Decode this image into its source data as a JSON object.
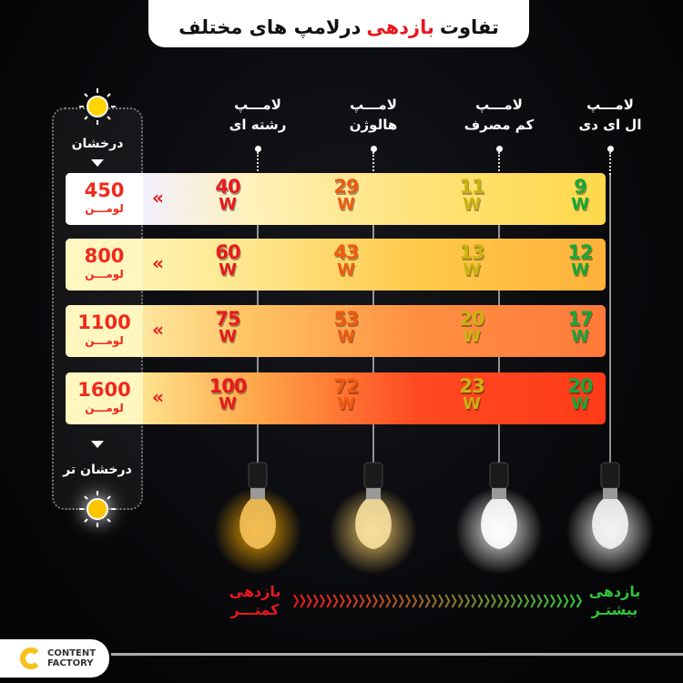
{
  "title": {
    "part1": "تفاوت",
    "highlight": "بازدهی",
    "part2": "درلامپ های مختلف"
  },
  "columns": [
    {
      "line1": "لامـــپ",
      "line2": "رشته ای"
    },
    {
      "line1": "لامـــپ",
      "line2": "هالوژن"
    },
    {
      "line1": "لامـــپ",
      "line2": "کم مصرف"
    },
    {
      "line1": "لامـــپ",
      "line2": "ال ای دی"
    }
  ],
  "brightness": {
    "top_label": "درخشان",
    "bottom_label": "درخشان تر",
    "sun_icon": "sun-icon"
  },
  "rows": [
    {
      "lumens": "450",
      "unit": "لومـــن",
      "chevron": "«",
      "watts": [
        "40",
        "29",
        "11",
        "9"
      ],
      "w": "W"
    },
    {
      "lumens": "800",
      "unit": "لومـــن",
      "chevron": "«",
      "watts": [
        "60",
        "43",
        "13",
        "12"
      ],
      "w": "W"
    },
    {
      "lumens": "1100",
      "unit": "لومـــن",
      "chevron": "«",
      "watts": [
        "75",
        "53",
        "20",
        "17"
      ],
      "w": "W"
    },
    {
      "lumens": "1600",
      "unit": "لومـــن",
      "chevron": "«",
      "watts": [
        "100",
        "72",
        "23",
        "20"
      ],
      "w": "W"
    }
  ],
  "watt_colors": [
    "#e8191f",
    "#ef5a12",
    "#c9b312",
    "#13a83a"
  ],
  "row_gradients": [
    [
      "#f2efff",
      "#fff1b8",
      "#ffe27a",
      "#ffd84a"
    ],
    [
      "#fff3b0",
      "#ffe58a",
      "#ffc94a",
      "#ffb13a"
    ],
    [
      "#ffe7a0",
      "#ffc261",
      "#ff8f42",
      "#ff7a3a"
    ],
    [
      "#ffe38e",
      "#ffa84a",
      "#ff4a22",
      "#ff3a18"
    ]
  ],
  "efficiency": {
    "low_line1": "بازدهی",
    "low_line2": "کمتـــر",
    "high_line1": "بازدهی",
    "high_line2": "بیشتـر",
    "low_color": "#e8191f",
    "high_color": "#34c23a",
    "arrow": "»"
  },
  "logo": {
    "line1": "CONTENT",
    "line2": "FACTORY"
  }
}
